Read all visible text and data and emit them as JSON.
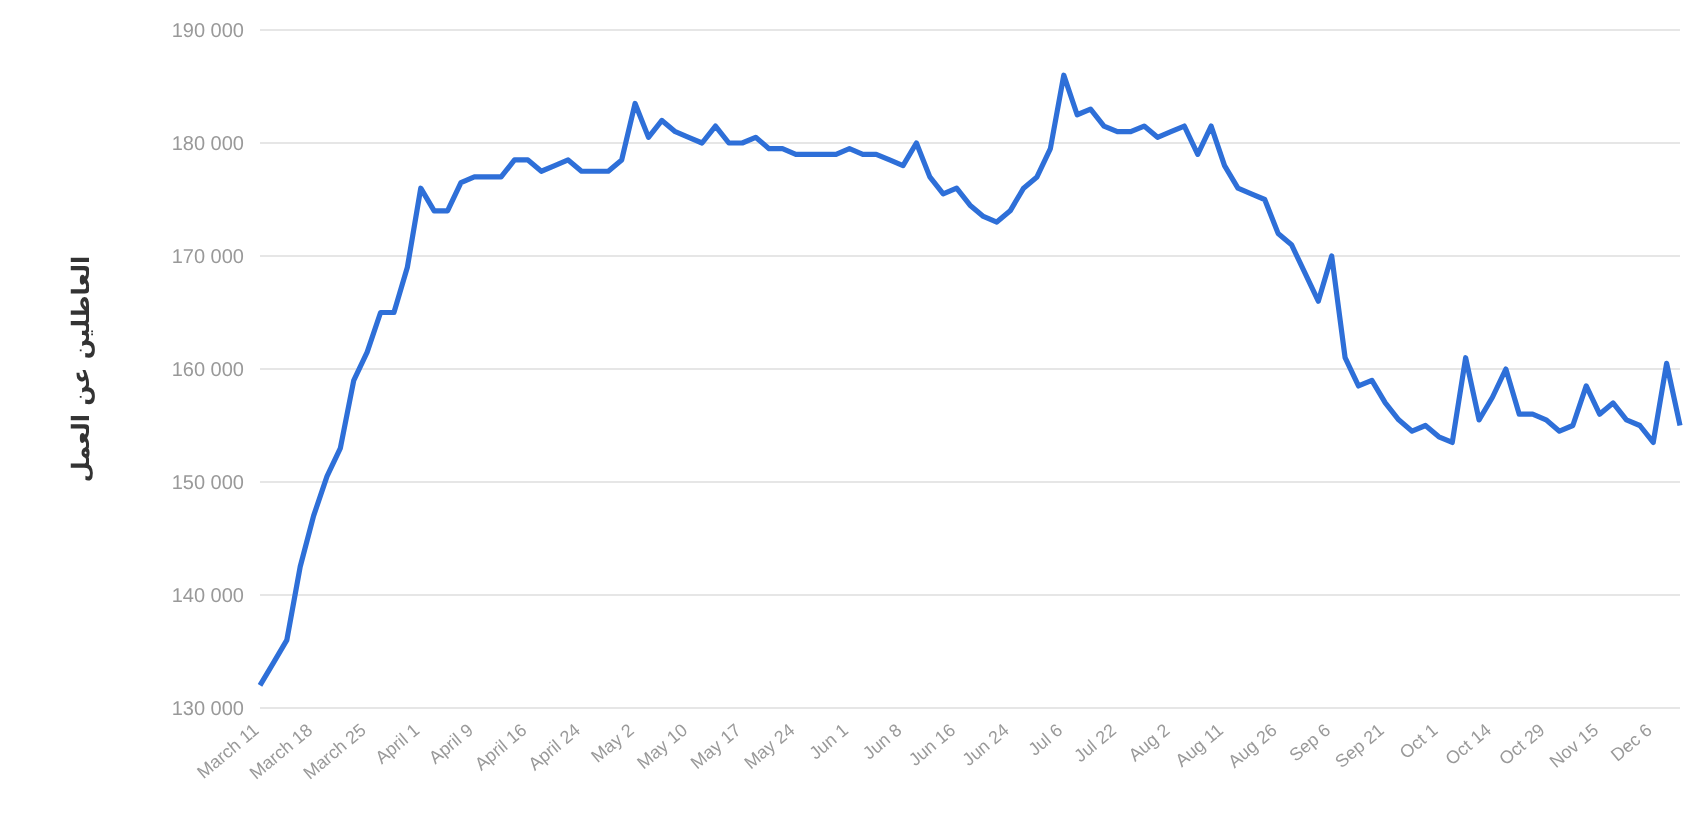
{
  "chart_data": {
    "type": "line",
    "ylabel": "العاطلين عن العمل",
    "categories": [
      "March 11",
      null,
      null,
      null,
      "March 18",
      null,
      null,
      null,
      "March 25",
      null,
      null,
      null,
      "April 1",
      null,
      null,
      null,
      "April 9",
      null,
      null,
      null,
      "April 16",
      null,
      null,
      null,
      "April 24",
      null,
      null,
      null,
      "May 2",
      null,
      null,
      null,
      "May 10",
      null,
      null,
      null,
      "May 17",
      null,
      null,
      null,
      "May 24",
      null,
      null,
      null,
      "Jun 1",
      null,
      null,
      null,
      "Jun 8",
      null,
      null,
      null,
      "Jun 16",
      null,
      null,
      null,
      "Jun 24",
      null,
      null,
      null,
      "Jul 6",
      null,
      null,
      null,
      "Jul 22",
      null,
      null,
      null,
      "Aug 2",
      null,
      null,
      null,
      "Aug 11",
      null,
      null,
      null,
      "Aug 26",
      null,
      null,
      null,
      "Sep 6",
      null,
      null,
      null,
      "Sep 21",
      null,
      null,
      null,
      "Oct 1",
      null,
      null,
      null,
      "Oct 14",
      null,
      null,
      null,
      "Oct 29",
      null,
      null,
      null,
      "Nov 15",
      null,
      null,
      null,
      "Dec 6",
      null,
      null
    ],
    "series": [
      {
        "color": "#2e6fd8",
        "values": [
          132000,
          134000,
          136000,
          142500,
          147000,
          150500,
          153000,
          159000,
          161500,
          165000,
          165000,
          169000,
          176000,
          174000,
          174000,
          176500,
          177000,
          177000,
          177000,
          178500,
          178500,
          177500,
          178000,
          178500,
          177500,
          177500,
          177500,
          178500,
          183500,
          180500,
          182000,
          181000,
          180500,
          180000,
          181500,
          180000,
          180000,
          180500,
          179500,
          179500,
          179000,
          179000,
          179000,
          179000,
          179500,
          179000,
          179000,
          178500,
          178000,
          180000,
          177000,
          175500,
          176000,
          174500,
          173500,
          173000,
          174000,
          176000,
          177000,
          179500,
          186000,
          182500,
          183000,
          181500,
          181000,
          181000,
          181500,
          180500,
          181000,
          181500,
          179000,
          181500,
          178000,
          176000,
          175500,
          175000,
          172000,
          171000,
          168500,
          166000,
          170000,
          161000,
          158500,
          159000,
          157000,
          155500,
          154500,
          155000,
          154000,
          153500,
          161000,
          155500,
          157500,
          160000,
          156000,
          156000,
          155500,
          154500,
          155000,
          158500,
          156000,
          157000,
          155500,
          155000,
          153500,
          160500,
          155000
        ]
      }
    ],
    "ylim": [
      130000,
      190000
    ],
    "yticks": [
      {
        "value": 130000,
        "label": "130 000"
      },
      {
        "value": 140000,
        "label": "140 000"
      },
      {
        "value": 150000,
        "label": "150 000"
      },
      {
        "value": 160000,
        "label": "160 000"
      },
      {
        "value": 170000,
        "label": "170 000"
      },
      {
        "value": 180000,
        "label": "180 000"
      },
      {
        "value": 190000,
        "label": "190 000"
      }
    ],
    "grid": "y",
    "legend": false,
    "marker": "none",
    "line_style": "solid"
  }
}
